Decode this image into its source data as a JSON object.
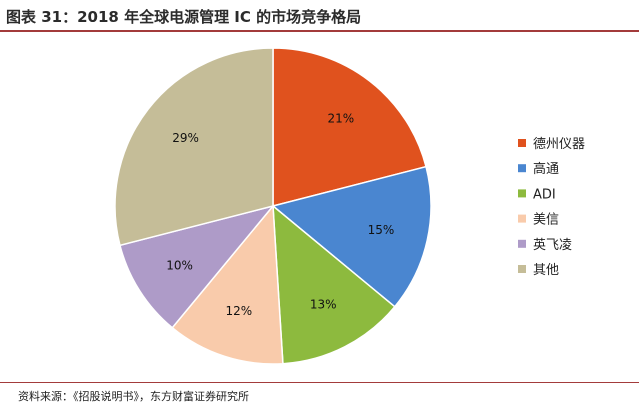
{
  "title": "图表 31：2018 年全球电源管理 IC 的市场竞争格局",
  "source": "资料来源：《招股说明书》，东方财富证券研究所",
  "chart_data": {
    "type": "pie",
    "title": "图表 31：2018 年全球电源管理 IC 的市场竞争格局",
    "categories": [
      "德州仪器",
      "高通",
      "ADI",
      "美信",
      "英飞凌",
      "其他"
    ],
    "values": [
      21,
      15,
      13,
      12,
      10,
      29
    ],
    "labels": [
      "21%",
      "15%",
      "13%",
      "12%",
      "10%",
      "29%"
    ],
    "colors": [
      "#E0521E",
      "#4A86D0",
      "#8DBA3E",
      "#F9CBAB",
      "#AE9BC8",
      "#C5BD98"
    ],
    "legend_position": "right",
    "start": "top, clockwise"
  }
}
